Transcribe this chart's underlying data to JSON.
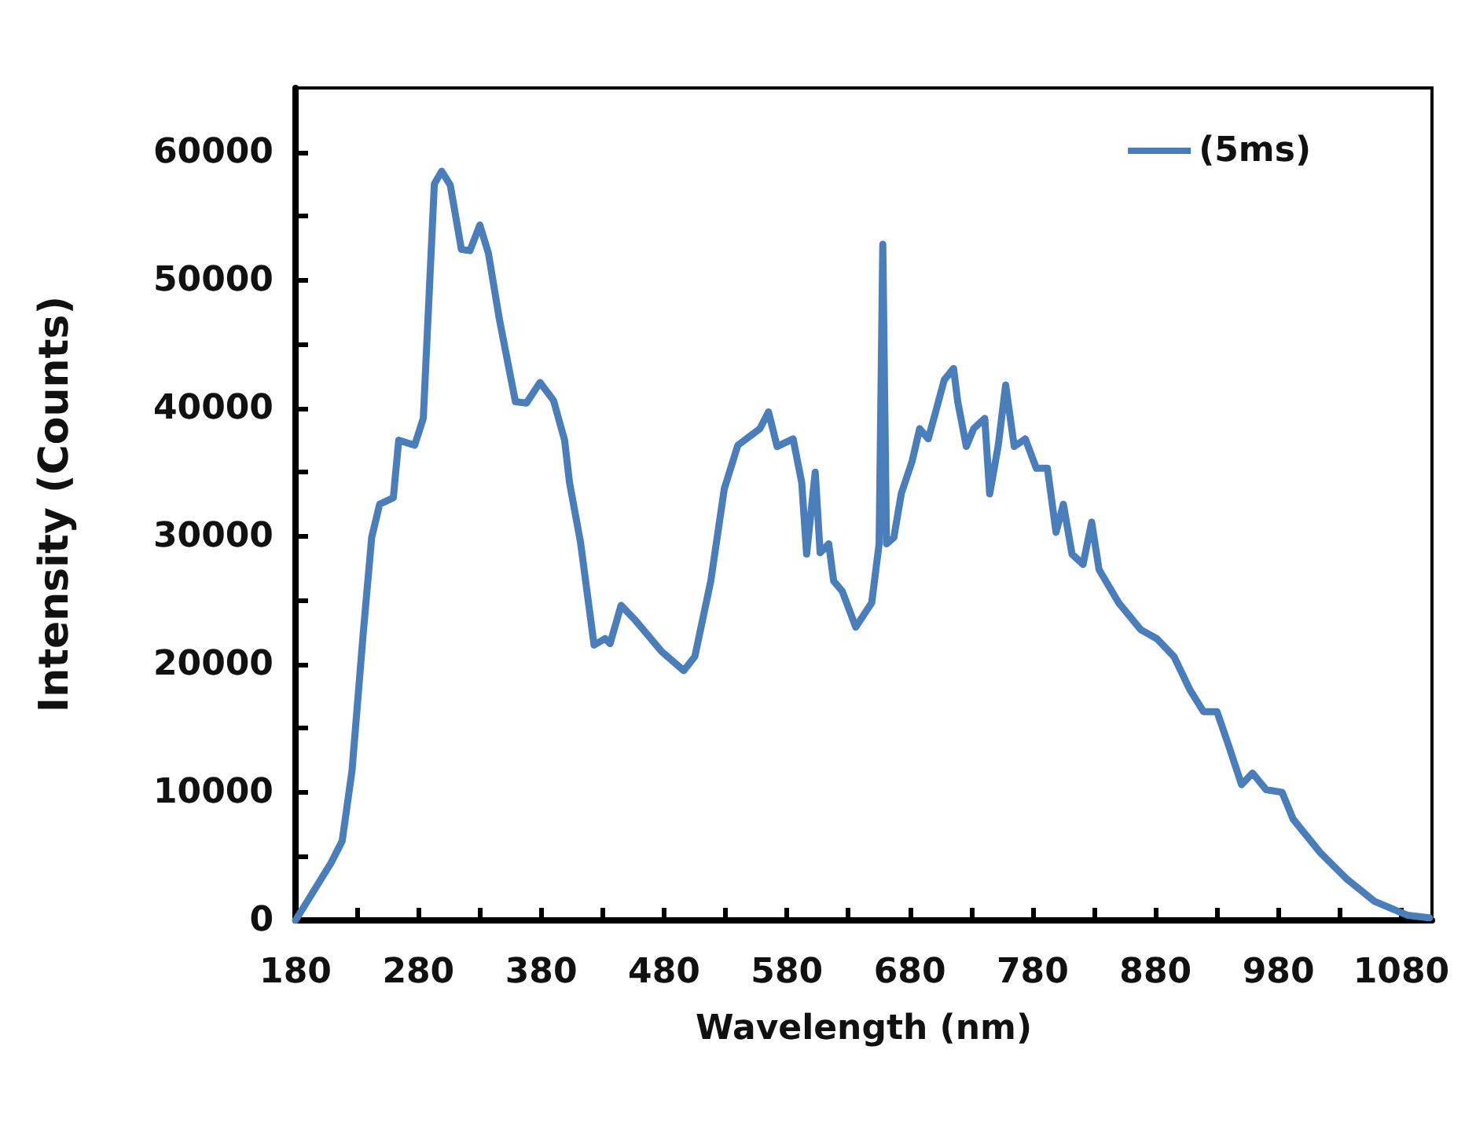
{
  "chart_data": {
    "type": "line",
    "xlabel": "Wavelength (nm)",
    "ylabel": "Intensity (Counts)",
    "xlim": [
      180,
      1105
    ],
    "ylim": [
      0,
      65000
    ],
    "xticks": [
      180,
      {
        "value": 230,
        "label": null
      },
      280,
      {
        "value": 330,
        "label": null
      },
      380,
      {
        "value": 430,
        "label": null
      },
      480,
      {
        "value": 530,
        "label": null
      },
      580,
      {
        "value": 630,
        "label": null
      },
      680,
      {
        "value": 730,
        "label": null
      },
      780,
      {
        "value": 830,
        "label": null
      },
      880,
      {
        "value": 930,
        "label": null
      },
      980,
      {
        "value": 1030,
        "label": null
      },
      1080
    ],
    "yticks": [
      0,
      {
        "value": 5000,
        "label": null
      },
      10000,
      {
        "value": 15000,
        "label": null
      },
      20000,
      {
        "value": 25000,
        "label": null
      },
      30000,
      {
        "value": 35000,
        "label": null
      },
      40000,
      {
        "value": 45000,
        "label": null
      },
      50000,
      {
        "value": 55000,
        "label": null
      },
      60000
    ],
    "grid": false,
    "legend": "top right",
    "marker": "none",
    "line_style": "solid",
    "x": [
      180,
      209,
      218,
      226,
      235,
      242,
      248.5,
      259.6,
      264,
      277,
      284,
      293,
      299,
      306,
      315,
      322,
      330,
      337,
      346,
      359,
      368,
      379,
      390,
      399,
      403,
      412,
      423,
      432,
      436,
      445,
      456,
      478,
      496,
      505,
      518,
      529,
      540,
      558,
      565,
      572,
      585,
      592,
      596,
      603,
      607,
      614,
      618,
      625,
      636,
      649,
      655,
      658,
      661,
      667,
      673,
      682,
      688,
      695,
      701,
      708,
      715.6,
      719,
      726,
      732,
      741,
      745,
      752,
      758,
      765,
      774,
      783,
      792,
      799,
      805,
      812,
      821,
      828,
      834,
      850,
      868,
      881,
      895,
      908,
      919,
      930,
      939,
      950,
      959,
      970,
      983,
      992,
      1014,
      1036,
      1058,
      1085,
      1103
    ],
    "series": [
      {
        "name": "(5ms)",
        "color": "#4a7ebb",
        "values": [
          0,
          4500,
          6200,
          11700,
          22300,
          29900,
          32500,
          33000,
          37500,
          37100,
          39200,
          57500,
          58500,
          57400,
          52400,
          52300,
          54300,
          52100,
          46900,
          40500,
          40400,
          42000,
          40600,
          37500,
          34200,
          29500,
          21500,
          22000,
          21600,
          24600,
          23500,
          21000,
          19500,
          20600,
          26500,
          33700,
          37100,
          38400,
          39700,
          37000,
          37600,
          34200,
          28600,
          35000,
          28700,
          29400,
          26500,
          25700,
          22900,
          24800,
          29400,
          52800,
          29400,
          29900,
          33300,
          35900,
          38400,
          37600,
          39700,
          42200,
          43100,
          40500,
          37000,
          38400,
          39200,
          33300,
          37100,
          41800,
          37000,
          37600,
          35300,
          35300,
          30300,
          32500,
          28600,
          27800,
          31100,
          27400,
          24800,
          22700,
          22000,
          20600,
          18000,
          16300,
          16300,
          13800,
          10600,
          11500,
          10200,
          10000,
          7900,
          5300,
          3200,
          1500,
          400,
          200
        ]
      }
    ]
  }
}
